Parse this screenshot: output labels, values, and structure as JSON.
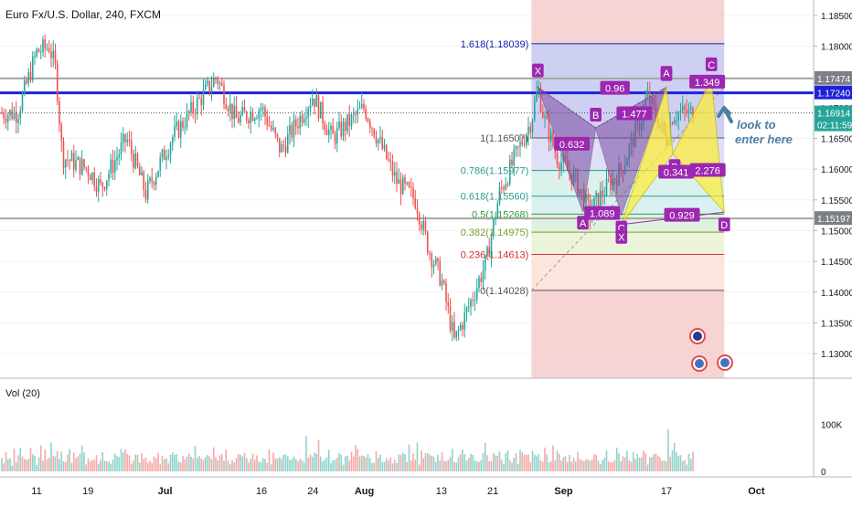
{
  "header": {
    "symbol_title": "Euro Fx/U.S. Dollar, 240, FXCM"
  },
  "volume_pane": {
    "label": "Vol (20)",
    "axis_labels": [
      "100K",
      "0"
    ]
  },
  "colors": {
    "bull": "#26a69a",
    "bear": "#ef5350",
    "blue_line": "#1e22d6",
    "grey_line": "#a6a6a6",
    "pattern_fill": "#7b4aa1",
    "pattern_yellow": "#ffee33",
    "annotation": "#4a7fa0",
    "purple_label": "#9c27b0"
  },
  "chart_data": [
    {
      "type": "candlestick",
      "title": "Euro Fx/U.S. Dollar, 240, FXCM",
      "y_axis_ticks": [
        "1.18500",
        "1.18000",
        "1.17500",
        "1.17000",
        "1.16500",
        "1.16000",
        "1.15500",
        "1.15000",
        "1.14500",
        "1.14000",
        "1.13500",
        "1.13000"
      ],
      "ylim": [
        1.126,
        1.1875
      ],
      "x_axis_labels": [
        "11",
        "19",
        "Jul",
        "16",
        "24",
        "Aug",
        "13",
        "21",
        "Sep",
        "17",
        "Oct"
      ],
      "price_path": [
        {
          "date": "Jun 8",
          "price": 1.169
        },
        {
          "date": "Jun 11",
          "price": 1.179
        },
        {
          "date": "Jun 13",
          "price": 1.18
        },
        {
          "date": "Jun 14",
          "price": 1.176
        },
        {
          "date": "Jun 15",
          "price": 1.162
        },
        {
          "date": "Jun 19",
          "price": 1.16
        },
        {
          "date": "Jun 21",
          "price": 1.157
        },
        {
          "date": "Jun 25",
          "price": 1.165
        },
        {
          "date": "Jun 28",
          "price": 1.156
        },
        {
          "date": "Jul 2",
          "price": 1.165
        },
        {
          "date": "Jul 9",
          "price": 1.175
        },
        {
          "date": "Jul 12",
          "price": 1.168
        },
        {
          "date": "Jul 16",
          "price": 1.17
        },
        {
          "date": "Jul 19",
          "price": 1.163
        },
        {
          "date": "Jul 24",
          "price": 1.172
        },
        {
          "date": "Jul 27",
          "price": 1.165
        },
        {
          "date": "Aug 1",
          "price": 1.17
        },
        {
          "date": "Aug 6",
          "price": 1.158
        },
        {
          "date": "Aug 9",
          "price": 1.155
        },
        {
          "date": "Aug 11",
          "price": 1.147
        },
        {
          "date": "Aug 13",
          "price": 1.142
        },
        {
          "date": "Aug 15",
          "price": 1.132
        },
        {
          "date": "Aug 17",
          "price": 1.137
        },
        {
          "date": "Aug 20",
          "price": 1.145
        },
        {
          "date": "Aug 22",
          "price": 1.156
        },
        {
          "date": "Aug 27",
          "price": 1.168
        },
        {
          "date": "Aug 28",
          "price": 1.1732
        },
        {
          "date": "Aug 29",
          "price": 1.168
        },
        {
          "date": "Aug 31",
          "price": 1.162
        },
        {
          "date": "Sep 3",
          "price": 1.158
        },
        {
          "date": "Sep 5",
          "price": 1.153
        },
        {
          "date": "Sep 7",
          "price": 1.156
        },
        {
          "date": "Sep 10",
          "price": 1.16
        },
        {
          "date": "Sep 13",
          "price": 1.168
        },
        {
          "date": "Sep 14",
          "price": 1.172
        },
        {
          "date": "Sep 17",
          "price": 1.165
        },
        {
          "date": "Sep 18",
          "price": 1.169
        },
        {
          "date": "Sep 19",
          "price": 1.1691
        }
      ],
      "horizontal_levels": [
        {
          "price": 1.17474,
          "label": "1.17474",
          "color": "grey"
        },
        {
          "price": 1.1724,
          "label": "1.17240",
          "color": "blue"
        },
        {
          "price": 1.15197,
          "label": "1.15197",
          "color": "grey"
        }
      ],
      "current_price": {
        "price": 1.16914,
        "label": "1.16914",
        "countdown": "02:11:59"
      },
      "fibonacci": {
        "start_date": "Aug 27",
        "end_date": "Sep 26",
        "levels": [
          {
            "ratio": "1.618",
            "price": 1.18039,
            "label": "1.618(1.18039)",
            "color": "#1a1aaa"
          },
          {
            "ratio": "1",
            "price": 1.16507,
            "label": "1(1.16507)",
            "color": "#555555"
          },
          {
            "ratio": "0.786",
            "price": 1.15977,
            "label": "0.786(1.15977)",
            "color": "#2e9c8a"
          },
          {
            "ratio": "0.618",
            "price": 1.1556,
            "label": "0.618(1.15560)",
            "color": "#2e9c8a"
          },
          {
            "ratio": "0.5",
            "price": 1.15268,
            "label": "0.5(1.15268)",
            "color": "#2e9c40"
          },
          {
            "ratio": "0.382",
            "price": 1.14975,
            "label": "0.382(1.14975)",
            "color": "#7aa02e"
          },
          {
            "ratio": "0.236",
            "price": 1.14613,
            "label": "0.236(1.14613)",
            "color": "#d32f2f"
          },
          {
            "ratio": "0",
            "price": 1.14028,
            "label": "0(1.14028)",
            "color": "#555555"
          }
        ]
      },
      "harmonic_pattern_1": {
        "points": [
          {
            "name": "X",
            "date": "Aug 28",
            "price": 1.1733
          },
          {
            "name": "A",
            "date": "Sep 4",
            "price": 1.153
          },
          {
            "name": "B",
            "date": "Sep 6",
            "price": 1.1667
          },
          {
            "name": "C",
            "date": "Sep 10",
            "price": 1.1525
          },
          {
            "name": "D",
            "date": "Sep 17",
            "price": 1.1733
          }
        ],
        "ratios": [
          "0.632",
          "1.089",
          "0.96"
        ]
      },
      "harmonic_pattern_2": {
        "points": [
          {
            "name": "X",
            "date": "Sep 10",
            "price": 1.151
          },
          {
            "name": "A",
            "date": "Sep 17",
            "price": 1.1735
          },
          {
            "name": "B",
            "date": "Sep 18",
            "price": 1.1625
          },
          {
            "name": "C",
            "date": "Sep 24",
            "price": 1.1746
          },
          {
            "name": "D",
            "date": "Sep 26",
            "price": 1.153
          }
        ],
        "ratios": [
          "1.477",
          "0.341",
          "1.349",
          "2.276",
          "0.929"
        ]
      },
      "annotation": "look to\nenter here"
    },
    {
      "type": "bar",
      "title": "Vol (20)",
      "series": [
        {
          "values_description": "volume bars colored by candle direction"
        }
      ],
      "ylim": [
        0,
        140000
      ],
      "y_axis_ticks": [
        "100K",
        "0"
      ],
      "approx_values_k": [
        32,
        18,
        28,
        25,
        30,
        20,
        35,
        22,
        26,
        40,
        30,
        24,
        28,
        35,
        45,
        26,
        30,
        22,
        25,
        38,
        28,
        32,
        24,
        30,
        42,
        28,
        24,
        30,
        26,
        34,
        29,
        25,
        40,
        35,
        22,
        28,
        33,
        25,
        30,
        45,
        27,
        23,
        31,
        28,
        36,
        26,
        30,
        24,
        29,
        38,
        25,
        32,
        27,
        24,
        35,
        29,
        31,
        26,
        40,
        28,
        33,
        25,
        30,
        22,
        36,
        28,
        31,
        27,
        34,
        24
      ]
    }
  ]
}
